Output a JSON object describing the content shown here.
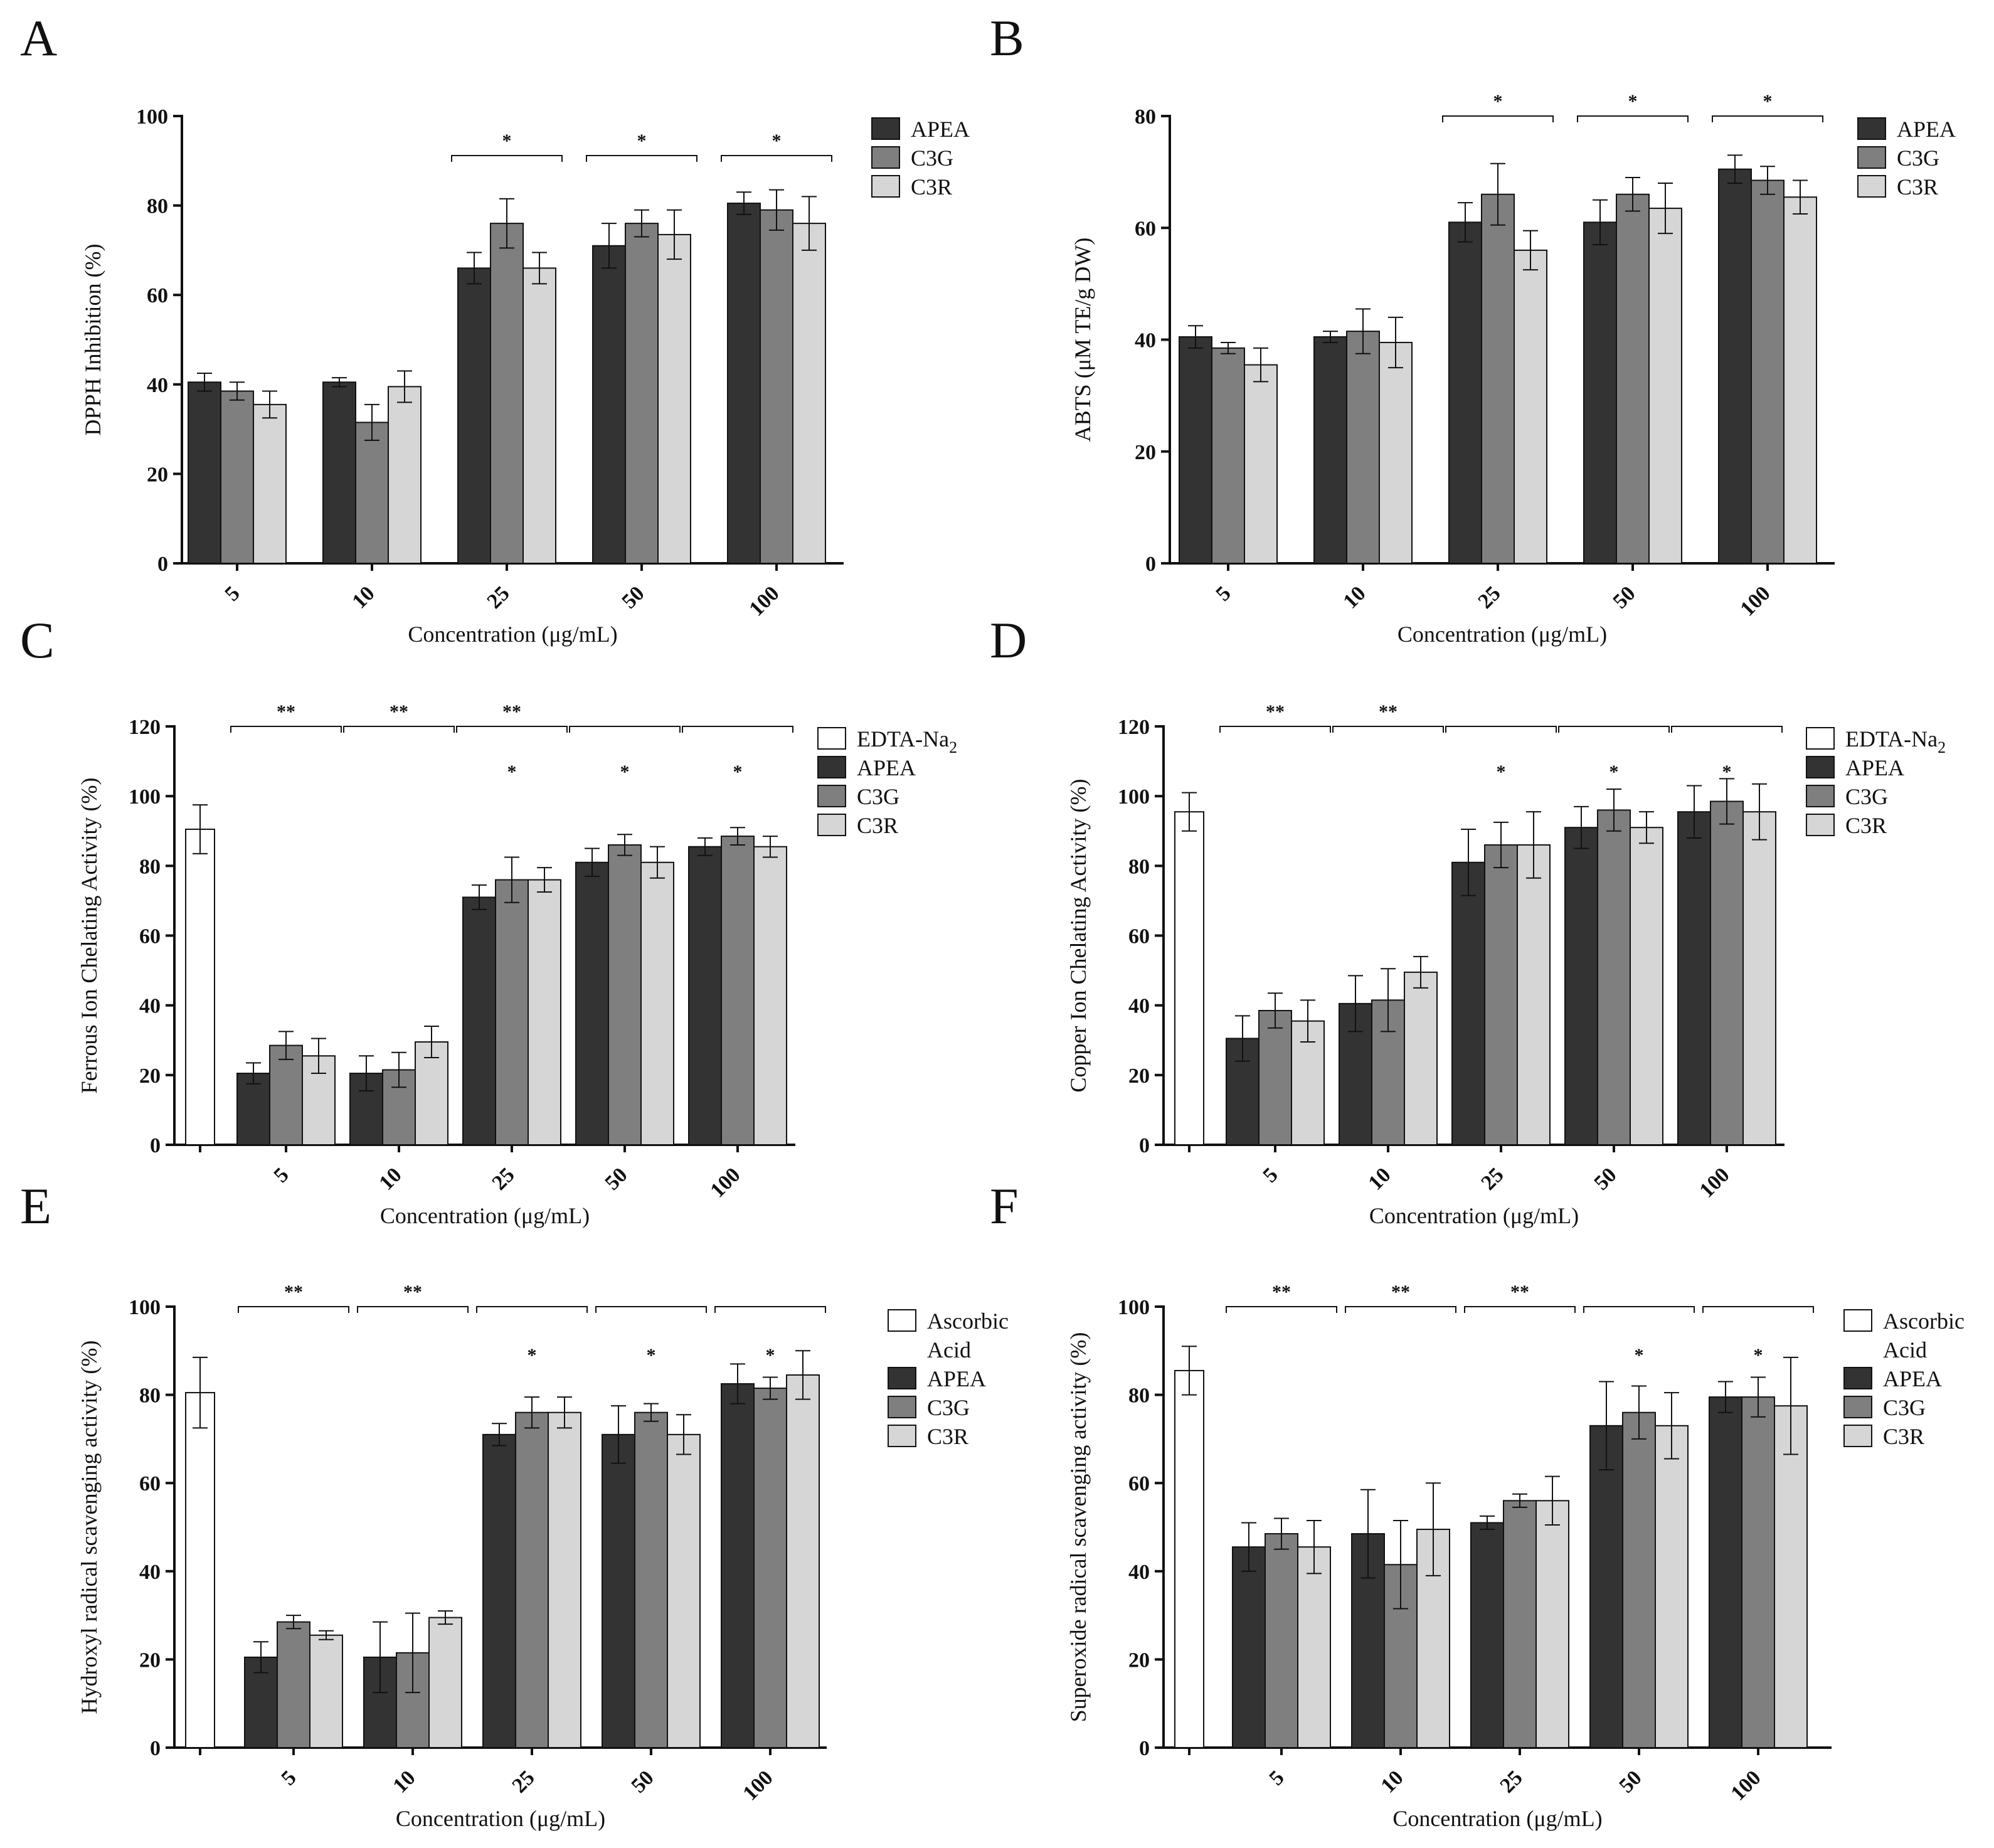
{
  "colors": {
    "white": "#ffffff",
    "APEA": "#333333",
    "C3G": "#7f7f7f",
    "C3R": "#d6d6d6"
  },
  "chart_data": [
    {
      "type": "bar",
      "panel": "A",
      "ylabel": "DPPH Inhibition (%)",
      "xlabel": "Concentration (μg/mL)",
      "ylim": [
        0,
        100
      ],
      "yticks": [
        0,
        20,
        40,
        60,
        80,
        100
      ],
      "categories": [
        "5",
        "10",
        "25",
        "50",
        "100"
      ],
      "series": [
        {
          "name": "APEA",
          "color": "APEA",
          "values": [
            40.5,
            40.5,
            66,
            71,
            80.5
          ],
          "errors": [
            2,
            1,
            3.5,
            5,
            2.5
          ]
        },
        {
          "name": "C3G",
          "color": "C3G",
          "values": [
            38.5,
            31.5,
            76,
            76,
            79
          ],
          "errors": [
            2,
            4,
            5.5,
            3,
            4.5
          ]
        },
        {
          "name": "C3R",
          "color": "C3R",
          "values": [
            35.5,
            39.5,
            66,
            73.5,
            76
          ],
          "errors": [
            3,
            3.5,
            3.5,
            5.5,
            6
          ]
        }
      ],
      "legend": [
        "APEA",
        "C3G",
        "C3R"
      ],
      "significance": [
        {
          "group": 2,
          "rows": [
            "*"
          ]
        },
        {
          "group": 3,
          "rows": [
            "*"
          ]
        },
        {
          "group": 4,
          "rows": [
            "*"
          ]
        }
      ]
    },
    {
      "type": "bar",
      "panel": "B",
      "ylabel": "ABTS (μM TE/g DW)",
      "xlabel": "Concentration (μg/mL)",
      "ylim": [
        0,
        80
      ],
      "yticks": [
        0,
        20,
        40,
        60,
        80
      ],
      "categories": [
        "5",
        "10",
        "25",
        "50",
        "100"
      ],
      "series": [
        {
          "name": "APEA",
          "color": "APEA",
          "values": [
            40.5,
            40.5,
            61,
            61,
            70.5
          ],
          "errors": [
            2,
            1,
            3.5,
            4,
            2.5
          ]
        },
        {
          "name": "C3G",
          "color": "C3G",
          "values": [
            38.5,
            41.5,
            66,
            66,
            68.5
          ],
          "errors": [
            1,
            4,
            5.5,
            3,
            2.5
          ]
        },
        {
          "name": "C3R",
          "color": "C3R",
          "values": [
            35.5,
            39.5,
            56,
            63.5,
            65.5
          ],
          "errors": [
            3,
            4.5,
            3.5,
            4.5,
            3
          ]
        }
      ],
      "legend": [
        "APEA",
        "C3G",
        "C3R"
      ],
      "significance": [
        {
          "group": 2,
          "rows": [
            "*"
          ]
        },
        {
          "group": 3,
          "rows": [
            "*"
          ]
        },
        {
          "group": 4,
          "rows": [
            "*"
          ]
        }
      ]
    },
    {
      "type": "bar",
      "panel": "C",
      "ylabel": "Ferrous Ion Chelating Activity (%)",
      "xlabel": "Concentration (μg/mL)",
      "ylim": [
        0,
        120
      ],
      "yticks": [
        0,
        20,
        40,
        60,
        80,
        100,
        120
      ],
      "categories": [
        "5",
        "10",
        "25",
        "50",
        "100"
      ],
      "control": {
        "name": "EDTA-Na2",
        "value": 90.5,
        "error": 7
      },
      "series": [
        {
          "name": "APEA",
          "color": "APEA",
          "values": [
            20.5,
            20.5,
            71,
            81,
            85.5
          ],
          "errors": [
            3,
            5,
            3.5,
            4,
            2.5
          ]
        },
        {
          "name": "C3G",
          "color": "C3G",
          "values": [
            28.5,
            21.5,
            76,
            86,
            88.5
          ],
          "errors": [
            4,
            5,
            6.5,
            3,
            2.5
          ]
        },
        {
          "name": "C3R",
          "color": "C3R",
          "values": [
            25.5,
            29.5,
            76,
            81,
            85.5
          ],
          "errors": [
            5,
            4.5,
            3.5,
            4.5,
            3
          ]
        }
      ],
      "legend": [
        "EDTA-Na",
        "APEA",
        "C3G",
        "C3R"
      ],
      "legend_sub": "2",
      "significance": [
        {
          "group": 0,
          "rows": [
            "**"
          ]
        },
        {
          "group": 1,
          "rows": [
            "**"
          ]
        },
        {
          "group": 2,
          "rows": [
            "**",
            "*"
          ]
        },
        {
          "group": 3,
          "rows": [
            "",
            "*"
          ]
        },
        {
          "group": 4,
          "rows": [
            "",
            "*"
          ]
        }
      ]
    },
    {
      "type": "bar",
      "panel": "D",
      "ylabel": "Copper Ion Chelating Activity (%)",
      "xlabel": "Concentration (μg/mL)",
      "ylim": [
        0,
        120
      ],
      "yticks": [
        0,
        20,
        40,
        60,
        80,
        100,
        120
      ],
      "categories": [
        "5",
        "10",
        "25",
        "50",
        "100"
      ],
      "control": {
        "name": "EDTA-Na2",
        "value": 95.5,
        "error": 5.5
      },
      "series": [
        {
          "name": "APEA",
          "color": "APEA",
          "values": [
            30.5,
            40.5,
            81,
            91,
            95.5
          ],
          "errors": [
            6.5,
            8,
            9.5,
            6,
            7.5
          ]
        },
        {
          "name": "C3G",
          "color": "C3G",
          "values": [
            38.5,
            41.5,
            86,
            96,
            98.5
          ],
          "errors": [
            5,
            9,
            6.5,
            6,
            6.5
          ]
        },
        {
          "name": "C3R",
          "color": "C3R",
          "values": [
            35.5,
            49.5,
            86,
            91,
            95.5
          ],
          "errors": [
            6,
            4.5,
            9.5,
            4.5,
            8
          ]
        }
      ],
      "legend": [
        "EDTA-Na",
        "APEA",
        "C3G",
        "C3R"
      ],
      "legend_sub": "2",
      "significance": [
        {
          "group": 0,
          "rows": [
            "**"
          ]
        },
        {
          "group": 1,
          "rows": [
            "**"
          ]
        },
        {
          "group": 2,
          "rows": [
            "",
            "*"
          ]
        },
        {
          "group": 3,
          "rows": [
            "",
            "*"
          ]
        },
        {
          "group": 4,
          "rows": [
            "",
            "*"
          ]
        }
      ]
    },
    {
      "type": "bar",
      "panel": "E",
      "ylabel": "Hydroxyl radical scavenging activity (%)",
      "xlabel": "Concentration (μg/mL)",
      "ylim": [
        0,
        100
      ],
      "yticks": [
        0,
        20,
        40,
        60,
        80,
        100
      ],
      "categories": [
        "5",
        "10",
        "25",
        "50",
        "100"
      ],
      "control": {
        "name": "Ascorbic Acid",
        "value": 80.5,
        "error": 8
      },
      "series": [
        {
          "name": "APEA",
          "color": "APEA",
          "values": [
            20.5,
            20.5,
            71,
            71,
            82.5
          ],
          "errors": [
            3.5,
            8,
            2.5,
            6.5,
            4.5
          ]
        },
        {
          "name": "C3G",
          "color": "C3G",
          "values": [
            28.5,
            21.5,
            76,
            76,
            81.5
          ],
          "errors": [
            1.5,
            9,
            3.5,
            2,
            2.5
          ]
        },
        {
          "name": "C3R",
          "color": "C3R",
          "values": [
            25.5,
            29.5,
            76,
            71,
            84.5
          ],
          "errors": [
            1,
            1.5,
            3.5,
            4.5,
            5.5
          ]
        }
      ],
      "legend": [
        "Ascorbic",
        "Acid",
        "APEA",
        "C3G",
        "C3R"
      ],
      "significance": [
        {
          "group": 0,
          "rows": [
            "**"
          ]
        },
        {
          "group": 1,
          "rows": [
            "**"
          ]
        },
        {
          "group": 2,
          "rows": [
            "",
            "*"
          ]
        },
        {
          "group": 3,
          "rows": [
            "",
            "*"
          ]
        },
        {
          "group": 4,
          "rows": [
            "",
            "*"
          ]
        }
      ]
    },
    {
      "type": "bar",
      "panel": "F",
      "ylabel": "Superoxide radical scavenging activity (%)",
      "xlabel": "Concentration (μg/mL)",
      "ylim": [
        0,
        100
      ],
      "yticks": [
        0,
        20,
        40,
        60,
        80,
        100
      ],
      "categories": [
        "5",
        "10",
        "25",
        "50",
        "100"
      ],
      "control": {
        "name": "Ascorbic Acid",
        "value": 85.5,
        "error": 5.5
      },
      "series": [
        {
          "name": "APEA",
          "color": "APEA",
          "values": [
            45.5,
            48.5,
            51,
            73,
            79.5
          ],
          "errors": [
            5.5,
            10,
            1.5,
            10,
            3.5
          ]
        },
        {
          "name": "C3G",
          "color": "C3G",
          "values": [
            48.5,
            41.5,
            56,
            76,
            79.5
          ],
          "errors": [
            3.5,
            10,
            1.5,
            6,
            4.5
          ]
        },
        {
          "name": "C3R",
          "color": "C3R",
          "values": [
            45.5,
            49.5,
            56,
            73,
            77.5
          ],
          "errors": [
            6,
            10.5,
            5.5,
            7.5,
            11
          ]
        }
      ],
      "legend": [
        "Ascorbic",
        "Acid",
        "APEA",
        "C3G",
        "C3R"
      ],
      "significance": [
        {
          "group": 0,
          "rows": [
            "**"
          ]
        },
        {
          "group": 1,
          "rows": [
            "**"
          ]
        },
        {
          "group": 2,
          "rows": [
            "**"
          ]
        },
        {
          "group": 3,
          "rows": [
            "",
            "*"
          ]
        },
        {
          "group": 4,
          "rows": [
            "",
            "*"
          ]
        }
      ]
    }
  ]
}
